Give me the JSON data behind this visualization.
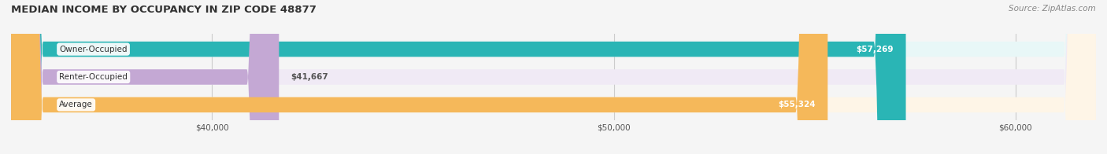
{
  "title": "MEDIAN INCOME BY OCCUPANCY IN ZIP CODE 48877",
  "source": "Source: ZipAtlas.com",
  "categories": [
    "Owner-Occupied",
    "Renter-Occupied",
    "Average"
  ],
  "values": [
    57269,
    41667,
    55324
  ],
  "labels": [
    "$57,269",
    "$41,667",
    "$55,324"
  ],
  "bar_colors": [
    "#2ab5b5",
    "#c4a8d4",
    "#f5b85a"
  ],
  "bar_bg_colors": [
    "#e8f7f7",
    "#f0eaf5",
    "#fef5e7"
  ],
  "xlim": [
    35000,
    62000
  ],
  "xticks": [
    40000,
    50000,
    60000
  ],
  "xtick_labels": [
    "$40,000",
    "$50,000",
    "$60,000"
  ],
  "bar_height": 0.55,
  "figsize": [
    14.06,
    1.96
  ],
  "dpi": 100
}
